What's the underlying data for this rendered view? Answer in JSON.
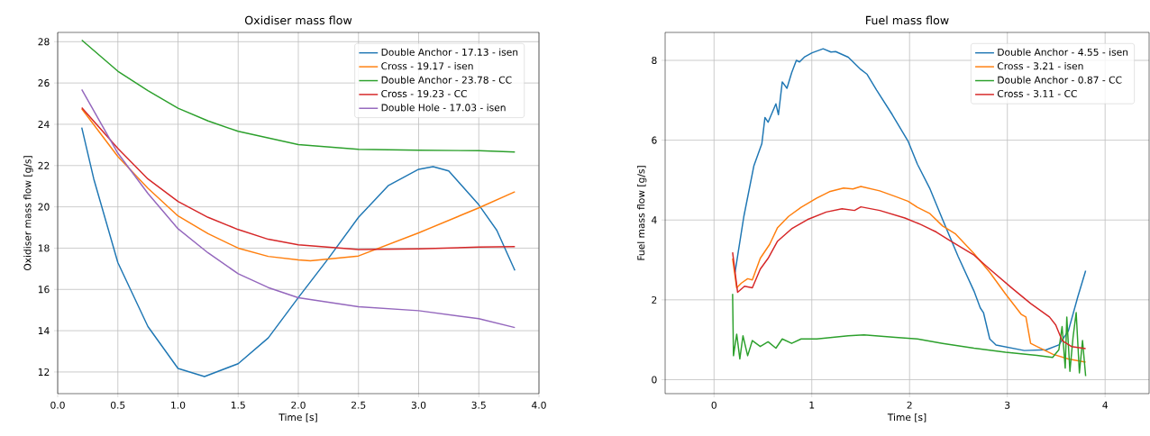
{
  "chart_data": [
    {
      "type": "line",
      "title": "Oxidiser mass flow",
      "xlabel": "Time [s]",
      "ylabel": "Oxidiser mass flow [g/s]",
      "xlim": [
        0,
        4
      ],
      "ylim": [
        10.95,
        28.45
      ],
      "xticks": [
        {
          "value": 0,
          "label": "0.0"
        },
        {
          "value": 0.5,
          "label": "0.5"
        },
        {
          "value": 1,
          "label": "1.0"
        },
        {
          "value": 1.5,
          "label": "1.5"
        },
        {
          "value": 2,
          "label": "2.0"
        },
        {
          "value": 2.5,
          "label": "2.5"
        },
        {
          "value": 3,
          "label": "3.0"
        },
        {
          "value": 3.5,
          "label": "3.5"
        },
        {
          "value": 4,
          "label": "4.0"
        }
      ],
      "yticks": [
        12,
        14,
        16,
        18,
        20,
        22,
        24,
        26,
        28
      ],
      "grid": true,
      "legend": "top right",
      "series": [
        {
          "name": "Double Anchor - 17.13 - isen",
          "color": "#1f77b4",
          "x": [
            0.2,
            0.3,
            0.5,
            0.75,
            1.0,
            1.22,
            1.5,
            1.75,
            2.0,
            2.25,
            2.5,
            2.75,
            3.0,
            3.12,
            3.25,
            3.5,
            3.65,
            3.8
          ],
          "values": [
            23.84,
            21.35,
            17.3,
            14.2,
            12.17,
            11.78,
            12.4,
            13.65,
            15.6,
            17.5,
            19.49,
            21.04,
            21.82,
            21.95,
            21.74,
            20.1,
            18.86,
            16.92
          ]
        },
        {
          "name": "Cross - 19.17 - isen",
          "color": "#ff7f0e",
          "x": [
            0.2,
            0.5,
            0.75,
            1.0,
            1.25,
            1.5,
            1.75,
            2.0,
            2.1,
            2.5,
            3.0,
            3.5,
            3.8
          ],
          "values": [
            24.75,
            22.44,
            20.9,
            19.56,
            18.7,
            18.0,
            17.6,
            17.43,
            17.39,
            17.62,
            18.74,
            19.95,
            20.73
          ]
        },
        {
          "name": "Double Anchor - 23.78 - CC",
          "color": "#2ca02c",
          "x": [
            0.2,
            0.5,
            0.75,
            1.0,
            1.25,
            1.5,
            2.0,
            2.5,
            3.0,
            3.5,
            3.8
          ],
          "values": [
            28.08,
            26.57,
            25.63,
            24.78,
            24.16,
            23.66,
            23.02,
            22.79,
            22.74,
            22.72,
            22.66
          ]
        },
        {
          "name": "Cross - 19.23 - CC",
          "color": "#d62728",
          "x": [
            0.2,
            0.5,
            0.75,
            1.0,
            1.25,
            1.5,
            1.75,
            2.0,
            2.5,
            3.0,
            3.5,
            3.8
          ],
          "values": [
            24.81,
            22.83,
            21.35,
            20.26,
            19.49,
            18.9,
            18.43,
            18.16,
            17.93,
            17.96,
            18.05,
            18.07
          ]
        },
        {
          "name": "Double Hole - 17.03 - isen",
          "color": "#9467bd",
          "x": [
            0.2,
            0.5,
            0.75,
            1.0,
            1.25,
            1.5,
            1.75,
            2.0,
            2.5,
            3.0,
            3.5,
            3.8
          ],
          "values": [
            25.68,
            22.6,
            20.65,
            18.94,
            17.77,
            16.76,
            16.09,
            15.6,
            15.16,
            14.97,
            14.58,
            14.15
          ]
        }
      ]
    },
    {
      "type": "line",
      "title": "Fuel mass flow",
      "xlabel": "Time [s]",
      "ylabel": "Fuel mass flow [g/s]",
      "xlim": [
        -0.5,
        4.45
      ],
      "ylim": [
        -0.35,
        8.7
      ],
      "xticks": [
        0,
        1,
        2,
        3,
        4
      ],
      "yticks": [
        0,
        2,
        4,
        6,
        8
      ],
      "grid": true,
      "legend": "top right",
      "series": [
        {
          "name": "Double Anchor - 4.55 - isen",
          "color": "#1f77b4",
          "x": [
            0.215,
            0.305,
            0.408,
            0.489,
            0.521,
            0.553,
            0.633,
            0.659,
            0.698,
            0.746,
            0.794,
            0.842,
            0.875,
            0.923,
            1.003,
            1.116,
            1.196,
            1.244,
            1.373,
            1.502,
            1.566,
            1.662,
            1.823,
            1.984,
            2.08,
            2.209,
            2.338,
            2.498,
            2.659,
            2.723,
            2.756,
            2.82,
            2.884,
            3.174,
            3.399,
            3.527,
            3.624,
            3.72,
            3.801
          ],
          "values": [
            2.69,
            4.09,
            5.36,
            5.91,
            6.57,
            6.45,
            6.91,
            6.64,
            7.46,
            7.3,
            7.69,
            8.0,
            7.96,
            8.08,
            8.19,
            8.29,
            8.21,
            8.22,
            8.08,
            7.77,
            7.65,
            7.26,
            6.64,
            5.98,
            5.4,
            4.78,
            4.01,
            3.08,
            2.22,
            1.8,
            1.68,
            1.02,
            0.87,
            0.73,
            0.75,
            0.87,
            1.22,
            2.07,
            2.73
          ]
        },
        {
          "name": "Cross - 3.21 - isen",
          "color": "#ff7f0e",
          "x": [
            0.19,
            0.232,
            0.28,
            0.344,
            0.392,
            0.473,
            0.569,
            0.65,
            0.762,
            0.891,
            1.051,
            1.18,
            1.325,
            1.421,
            1.502,
            1.695,
            1.855,
            1.984,
            2.08,
            2.209,
            2.338,
            2.466,
            2.659,
            2.82,
            2.981,
            3.141,
            3.19,
            3.238,
            3.302,
            3.463,
            3.624,
            3.801
          ],
          "values": [
            3.04,
            2.3,
            2.42,
            2.53,
            2.5,
            3.04,
            3.39,
            3.81,
            4.09,
            4.32,
            4.55,
            4.71,
            4.8,
            4.78,
            4.84,
            4.73,
            4.59,
            4.47,
            4.32,
            4.16,
            3.85,
            3.66,
            3.16,
            2.69,
            2.15,
            1.64,
            1.57,
            0.91,
            0.83,
            0.64,
            0.52,
            0.44
          ]
        },
        {
          "name": "Double Anchor - 0.87 - CC",
          "color": "#2ca02c",
          "x": [
            0.19,
            0.199,
            0.232,
            0.264,
            0.296,
            0.344,
            0.392,
            0.473,
            0.553,
            0.633,
            0.698,
            0.794,
            0.891,
            1.051,
            1.373,
            1.534,
            1.855,
            2.08,
            2.338,
            2.659,
            2.981,
            3.302,
            3.463,
            3.527,
            3.56,
            3.592,
            3.608,
            3.64,
            3.672,
            3.704,
            3.737,
            3.769,
            3.801
          ],
          "values": [
            2.15,
            0.6,
            1.14,
            0.52,
            1.1,
            0.6,
            0.98,
            0.83,
            0.95,
            0.79,
            1.02,
            0.91,
            1.02,
            1.02,
            1.1,
            1.12,
            1.06,
            1.02,
            0.91,
            0.79,
            0.69,
            0.61,
            0.56,
            0.75,
            1.33,
            0.29,
            1.57,
            0.21,
            1.06,
            1.68,
            0.17,
            0.98,
            0.09
          ]
        },
        {
          "name": "Cross - 3.11 - CC",
          "color": "#d62728",
          "x": [
            0.19,
            0.241,
            0.312,
            0.392,
            0.473,
            0.553,
            0.65,
            0.794,
            0.955,
            1.148,
            1.309,
            1.437,
            1.502,
            1.695,
            1.952,
            2.113,
            2.273,
            2.402,
            2.659,
            2.82,
            3.045,
            3.238,
            3.431,
            3.495,
            3.56,
            3.656,
            3.801
          ],
          "values": [
            3.19,
            2.19,
            2.34,
            2.3,
            2.77,
            3.04,
            3.47,
            3.78,
            4.01,
            4.2,
            4.28,
            4.24,
            4.33,
            4.24,
            4.05,
            3.89,
            3.7,
            3.5,
            3.12,
            2.77,
            2.3,
            1.91,
            1.57,
            1.37,
            0.98,
            0.83,
            0.78
          ]
        }
      ]
    }
  ]
}
